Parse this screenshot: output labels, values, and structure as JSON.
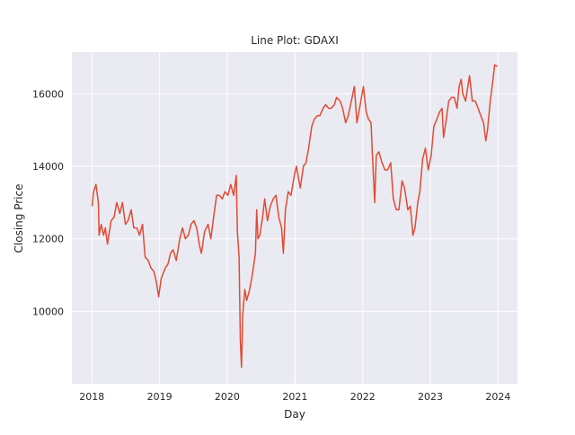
{
  "chart_data": {
    "type": "line",
    "title": "Line Plot: GDAXI",
    "xlabel": "Day",
    "ylabel": "Closing Price",
    "xlim": [
      "2017-09-15",
      "2024-04-15"
    ],
    "ylim": [
      8000,
      17150
    ],
    "grid": true,
    "x_ticks": [
      "2018",
      "2019",
      "2020",
      "2021",
      "2022",
      "2023",
      "2024"
    ],
    "y_ticks": [
      "10000",
      "12000",
      "14000",
      "16000"
    ],
    "colors": {
      "line": "#e24a33",
      "plot_background": "#eaeaf2",
      "grid": "#ffffff"
    },
    "series": [
      {
        "x": [
          "2018-01-02",
          "2018-01-10",
          "2018-01-23",
          "2018-02-05",
          "2018-02-09",
          "2018-02-20",
          "2018-03-05",
          "2018-03-15",
          "2018-03-26",
          "2018-04-15",
          "2018-05-01",
          "2018-05-15",
          "2018-06-01",
          "2018-06-15",
          "2018-07-01",
          "2018-07-15",
          "2018-08-01",
          "2018-08-15",
          "2018-09-01",
          "2018-09-15",
          "2018-10-01",
          "2018-10-15",
          "2018-11-01",
          "2018-11-15",
          "2018-12-01",
          "2018-12-15",
          "2018-12-27",
          "2019-01-10",
          "2019-02-01",
          "2019-02-15",
          "2019-03-01",
          "2019-03-15",
          "2019-04-01",
          "2019-04-20",
          "2019-05-05",
          "2019-05-20",
          "2019-06-05",
          "2019-06-20",
          "2019-07-05",
          "2019-07-20",
          "2019-08-05",
          "2019-08-15",
          "2019-09-01",
          "2019-09-20",
          "2019-10-05",
          "2019-10-20",
          "2019-11-05",
          "2019-11-20",
          "2019-12-05",
          "2019-12-20",
          "2020-01-05",
          "2020-01-20",
          "2020-02-05",
          "2020-02-19",
          "2020-02-25",
          "2020-03-05",
          "2020-03-12",
          "2020-03-18",
          "2020-03-25",
          "2020-04-05",
          "2020-04-15",
          "2020-05-01",
          "2020-05-15",
          "2020-06-01",
          "2020-06-08",
          "2020-06-15",
          "2020-06-25",
          "2020-07-10",
          "2020-07-21",
          "2020-08-05",
          "2020-08-20",
          "2020-09-05",
          "2020-09-20",
          "2020-10-05",
          "2020-10-20",
          "2020-10-30",
          "2020-11-10",
          "2020-11-25",
          "2020-12-10",
          "2020-12-28",
          "2021-01-08",
          "2021-01-29",
          "2021-02-15",
          "2021-03-01",
          "2021-03-15",
          "2021-04-01",
          "2021-04-15",
          "2021-05-01",
          "2021-05-15",
          "2021-06-01",
          "2021-06-15",
          "2021-07-01",
          "2021-07-15",
          "2021-08-01",
          "2021-08-13",
          "2021-09-01",
          "2021-09-15",
          "2021-10-01",
          "2021-10-15",
          "2021-11-01",
          "2021-11-17",
          "2021-12-01",
          "2021-12-15",
          "2022-01-05",
          "2022-01-20",
          "2022-02-01",
          "2022-02-15",
          "2022-02-24",
          "2022-03-07",
          "2022-03-15",
          "2022-03-29",
          "2022-04-15",
          "2022-05-01",
          "2022-05-15",
          "2022-06-01",
          "2022-06-15",
          "2022-07-01",
          "2022-07-15",
          "2022-08-01",
          "2022-08-15",
          "2022-09-01",
          "2022-09-15",
          "2022-09-29",
          "2022-10-10",
          "2022-10-25",
          "2022-11-05",
          "2022-11-20",
          "2022-12-05",
          "2022-12-20",
          "2023-01-05",
          "2023-01-20",
          "2023-02-05",
          "2023-02-20",
          "2023-03-05",
          "2023-03-13",
          "2023-03-25",
          "2023-04-10",
          "2023-04-25",
          "2023-05-10",
          "2023-05-25",
          "2023-06-05",
          "2023-06-16",
          "2023-06-25",
          "2023-07-10",
          "2023-07-31",
          "2023-08-15",
          "2023-08-31",
          "2023-09-15",
          "2023-09-30",
          "2023-10-15",
          "2023-10-27",
          "2023-11-05",
          "2023-11-20",
          "2023-12-05",
          "2023-12-14",
          "2023-12-29"
        ],
        "values": [
          12900,
          13300,
          13500,
          13000,
          12100,
          12400,
          12100,
          12300,
          11850,
          12500,
          12600,
          13000,
          12700,
          13000,
          12400,
          12500,
          12800,
          12300,
          12300,
          12100,
          12400,
          11500,
          11400,
          11200,
          11100,
          10800,
          10400,
          10900,
          11200,
          11300,
          11600,
          11700,
          11400,
          12000,
          12300,
          12000,
          12100,
          12400,
          12500,
          12300,
          11800,
          11600,
          12200,
          12400,
          12000,
          12600,
          13200,
          13200,
          13100,
          13300,
          13200,
          13500,
          13200,
          13750,
          12200,
          11500,
          9200,
          8450,
          9900,
          10600,
          10300,
          10600,
          11000,
          11600,
          12800,
          12000,
          12100,
          12600,
          13100,
          12500,
          12900,
          13100,
          13200,
          12600,
          12300,
          11600,
          12800,
          13300,
          13200,
          13750,
          14000,
          13400,
          14000,
          14100,
          14500,
          15100,
          15300,
          15400,
          15400,
          15600,
          15700,
          15600,
          15600,
          15700,
          15900,
          15800,
          15600,
          15200,
          15400,
          15800,
          16200,
          15200,
          15600,
          16200,
          15500,
          15300,
          15200,
          14100,
          13000,
          14300,
          14400,
          14100,
          13900,
          13900,
          14100,
          13100,
          12800,
          12800,
          13600,
          13400,
          12800,
          12900,
          12100,
          12300,
          13000,
          13300,
          14200,
          14500,
          13900,
          14300,
          15100,
          15300,
          15500,
          15600,
          14800,
          15200,
          15800,
          15900,
          15900,
          15600,
          16200,
          16400,
          16000,
          15800,
          16500,
          15800,
          15800,
          15600,
          15400,
          15200,
          14700,
          15000,
          15800,
          16400,
          16800,
          16750
        ]
      }
    ]
  }
}
